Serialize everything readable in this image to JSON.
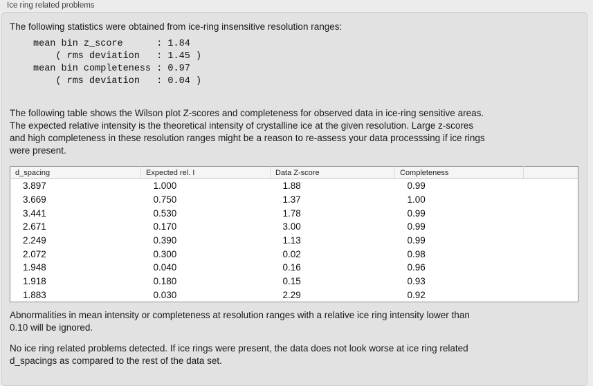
{
  "panel": {
    "title": "Ice ring related problems"
  },
  "colors": {
    "window_bg": "#ececec",
    "panel_bg": "#e2e2e2",
    "panel_border": "#cfcfcf",
    "table_bg": "#ffffff",
    "table_border": "#8c8c8c",
    "table_header_bg": "#f5f5f5",
    "text": "#1a1a1a"
  },
  "intro": "The following statistics were obtained from ice-ring insensitive resolution ranges:",
  "stats_block": "mean bin z_score      : 1.84\n    ( rms deviation   : 1.45 )\nmean bin completeness : 0.97\n    ( rms deviation   : 0.04 )",
  "description": "The following table shows the Wilson plot Z-scores and completeness for observed data in ice-ring sensitive areas.\nThe expected relative intensity is the theoretical intensity of crystalline ice at the given resolution. Large z-scores\nand high completeness in these resolution ranges might be a reason to re-assess your data processsing if ice rings\nwere present.",
  "table": {
    "columns": [
      "d_spacing",
      "Expected rel. I",
      "Data Z-score",
      "Completeness"
    ],
    "rows": [
      [
        "3.897",
        "1.000",
        "1.88",
        "0.99"
      ],
      [
        "3.669",
        "0.750",
        "1.37",
        "1.00"
      ],
      [
        "3.441",
        "0.530",
        "1.78",
        "0.99"
      ],
      [
        "2.671",
        "0.170",
        "3.00",
        "0.99"
      ],
      [
        "2.249",
        "0.390",
        "1.13",
        "0.99"
      ],
      [
        "2.072",
        "0.300",
        "0.02",
        "0.98"
      ],
      [
        "1.948",
        "0.040",
        "0.16",
        "0.96"
      ],
      [
        "1.918",
        "0.180",
        "0.15",
        "0.93"
      ],
      [
        "1.883",
        "0.030",
        "2.29",
        "0.92"
      ]
    ]
  },
  "note_ignore": "Abnormalities in mean intensity or completeness at resolution ranges with a relative ice ring intensity lower than\n0.10 will be ignored.",
  "conclusion": "No ice ring related problems detected. If ice rings were present, the data does not look worse at ice ring related\nd_spacings as compared to the rest of the data set."
}
